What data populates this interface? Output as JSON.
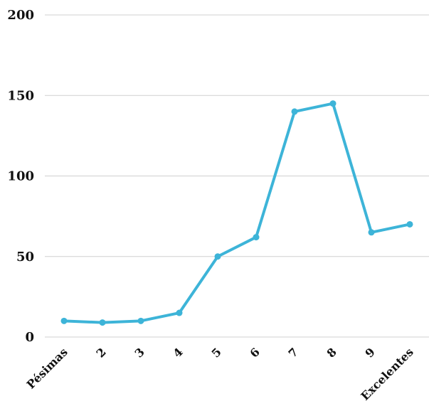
{
  "chart_data": {
    "type": "line",
    "title": "",
    "xlabel": "",
    "ylabel": "",
    "categories": [
      "Pésimas",
      "2",
      "3",
      "4",
      "5",
      "6",
      "7",
      "8",
      "9",
      "Excelentes"
    ],
    "series": [
      {
        "values": [
          10,
          9,
          10,
          15,
          50,
          62,
          140,
          145,
          65,
          70
        ]
      }
    ],
    "ylim": [
      0,
      200
    ],
    "yticks": [
      0,
      50,
      100,
      150,
      200
    ],
    "grid": true,
    "legend": "none",
    "colors": {
      "line": "#3db4d8",
      "grid": "#d0d0d0",
      "text": "#111111"
    }
  }
}
